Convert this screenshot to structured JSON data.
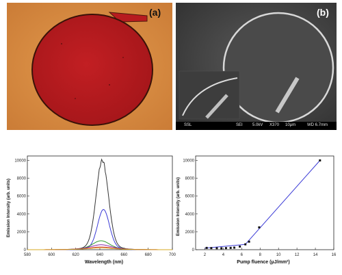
{
  "panel_a": {
    "label": "(a)"
  },
  "panel_b": {
    "label": "(b)",
    "sem_bar": [
      "SSL",
      "SEI",
      "5.0kV",
      "X370",
      "10μm",
      "WD 6.7mm"
    ]
  },
  "colors": {
    "ring_red": "#b3181d",
    "substrate": "#d9893f",
    "fit_line": "#3a3ad6"
  },
  "chart_data": [
    {
      "type": "line",
      "xlabel": "Wavelength (nm)",
      "ylabel": "Emission Intensity (arb. units)",
      "xlim": [
        580,
        700
      ],
      "ylim": [
        0,
        10500
      ],
      "xticks": [
        580,
        600,
        620,
        640,
        660,
        680,
        700
      ],
      "yticks": [
        0,
        2000,
        4000,
        6000,
        8000,
        10000
      ],
      "series": [
        {
          "color": "#333333",
          "peak_x": 642,
          "peak_y": 10000,
          "baseline": 500,
          "sigma": 5.0
        },
        {
          "color": "#3a3ad6",
          "peak_x": 643,
          "peak_y": 4500,
          "baseline": 300,
          "sigma": 4.8
        },
        {
          "color": "#2f9a2f",
          "peak_x": 641,
          "peak_y": 1000,
          "baseline": 200,
          "sigma": 6.5
        },
        {
          "color": "#8a2aa8",
          "peak_x": 641,
          "peak_y": 550,
          "baseline": 150,
          "sigma": 7.5
        },
        {
          "color": "#d02a2a",
          "peak_x": 641,
          "peak_y": 300,
          "baseline": 100,
          "sigma": 8.0
        },
        {
          "color": "#d7a820",
          "peak_x": 641,
          "peak_y": 200,
          "baseline": 80,
          "sigma": 8.5
        }
      ]
    },
    {
      "type": "scatter",
      "xlabel": "Pump fluence (μJ/mm²)",
      "ylabel": "Emission Intensity (arb. units)",
      "xlim": [
        1,
        16
      ],
      "ylim": [
        0,
        10500
      ],
      "xticks": [
        2,
        4,
        6,
        8,
        10,
        12,
        14,
        16
      ],
      "yticks": [
        0,
        2000,
        4000,
        6000,
        8000,
        10000
      ],
      "points": [
        {
          "x": 2.2,
          "y": 200
        },
        {
          "x": 2.7,
          "y": 180
        },
        {
          "x": 3.3,
          "y": 170
        },
        {
          "x": 3.8,
          "y": 160
        },
        {
          "x": 4.3,
          "y": 180
        },
        {
          "x": 4.8,
          "y": 200
        },
        {
          "x": 5.2,
          "y": 230
        },
        {
          "x": 5.8,
          "y": 350
        },
        {
          "x": 6.4,
          "y": 600
        },
        {
          "x": 6.8,
          "y": 900
        },
        {
          "x": 7.9,
          "y": 2500
        },
        {
          "x": 14.5,
          "y": 10000
        }
      ],
      "low_fit": [
        {
          "x": 2.0,
          "y": 180
        },
        {
          "x": 6.4,
          "y": 600
        }
      ],
      "high_fit": [
        {
          "x": 6.4,
          "y": 600
        },
        {
          "x": 14.5,
          "y": 10000
        }
      ]
    }
  ]
}
